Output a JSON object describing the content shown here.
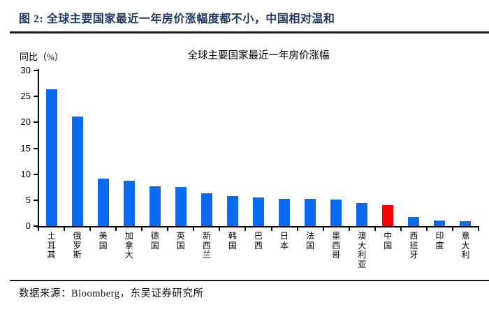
{
  "figure": {
    "header": "图 2:  全球主要国家最近一年房价涨幅度都不小，中国相对温和",
    "source": "数据来源：Bloomberg，东吴证券研究所"
  },
  "chart_data": {
    "type": "bar",
    "title": "全球主要国家最近一年房价涨幅",
    "xlabel": "",
    "ylabel": "同比（%）",
    "categories": [
      "土耳其",
      "俄罗斯",
      "美国",
      "加拿大",
      "德国",
      "英国",
      "新西兰",
      "韩国",
      "巴西",
      "日本",
      "法国",
      "墨西哥",
      "澳大利亚",
      "中国",
      "西班牙",
      "印度",
      "意大利"
    ],
    "values": [
      26.4,
      21.1,
      9.2,
      8.7,
      7.7,
      7.5,
      6.3,
      5.8,
      5.5,
      5.3,
      5.2,
      5.1,
      4.5,
      4.1,
      1.8,
      1.1,
      1.0
    ],
    "ylim": [
      0,
      30
    ],
    "yticks": [
      0,
      5,
      10,
      15,
      20,
      25,
      30
    ],
    "grid": false,
    "legend": "none",
    "bar_color": "#0A6AF0",
    "highlight": {
      "category": "中国",
      "color": "#FF0000"
    }
  },
  "colors": {
    "header_text": "#1F3A60",
    "rule": "#1b1b1b",
    "axis": "#000000"
  }
}
